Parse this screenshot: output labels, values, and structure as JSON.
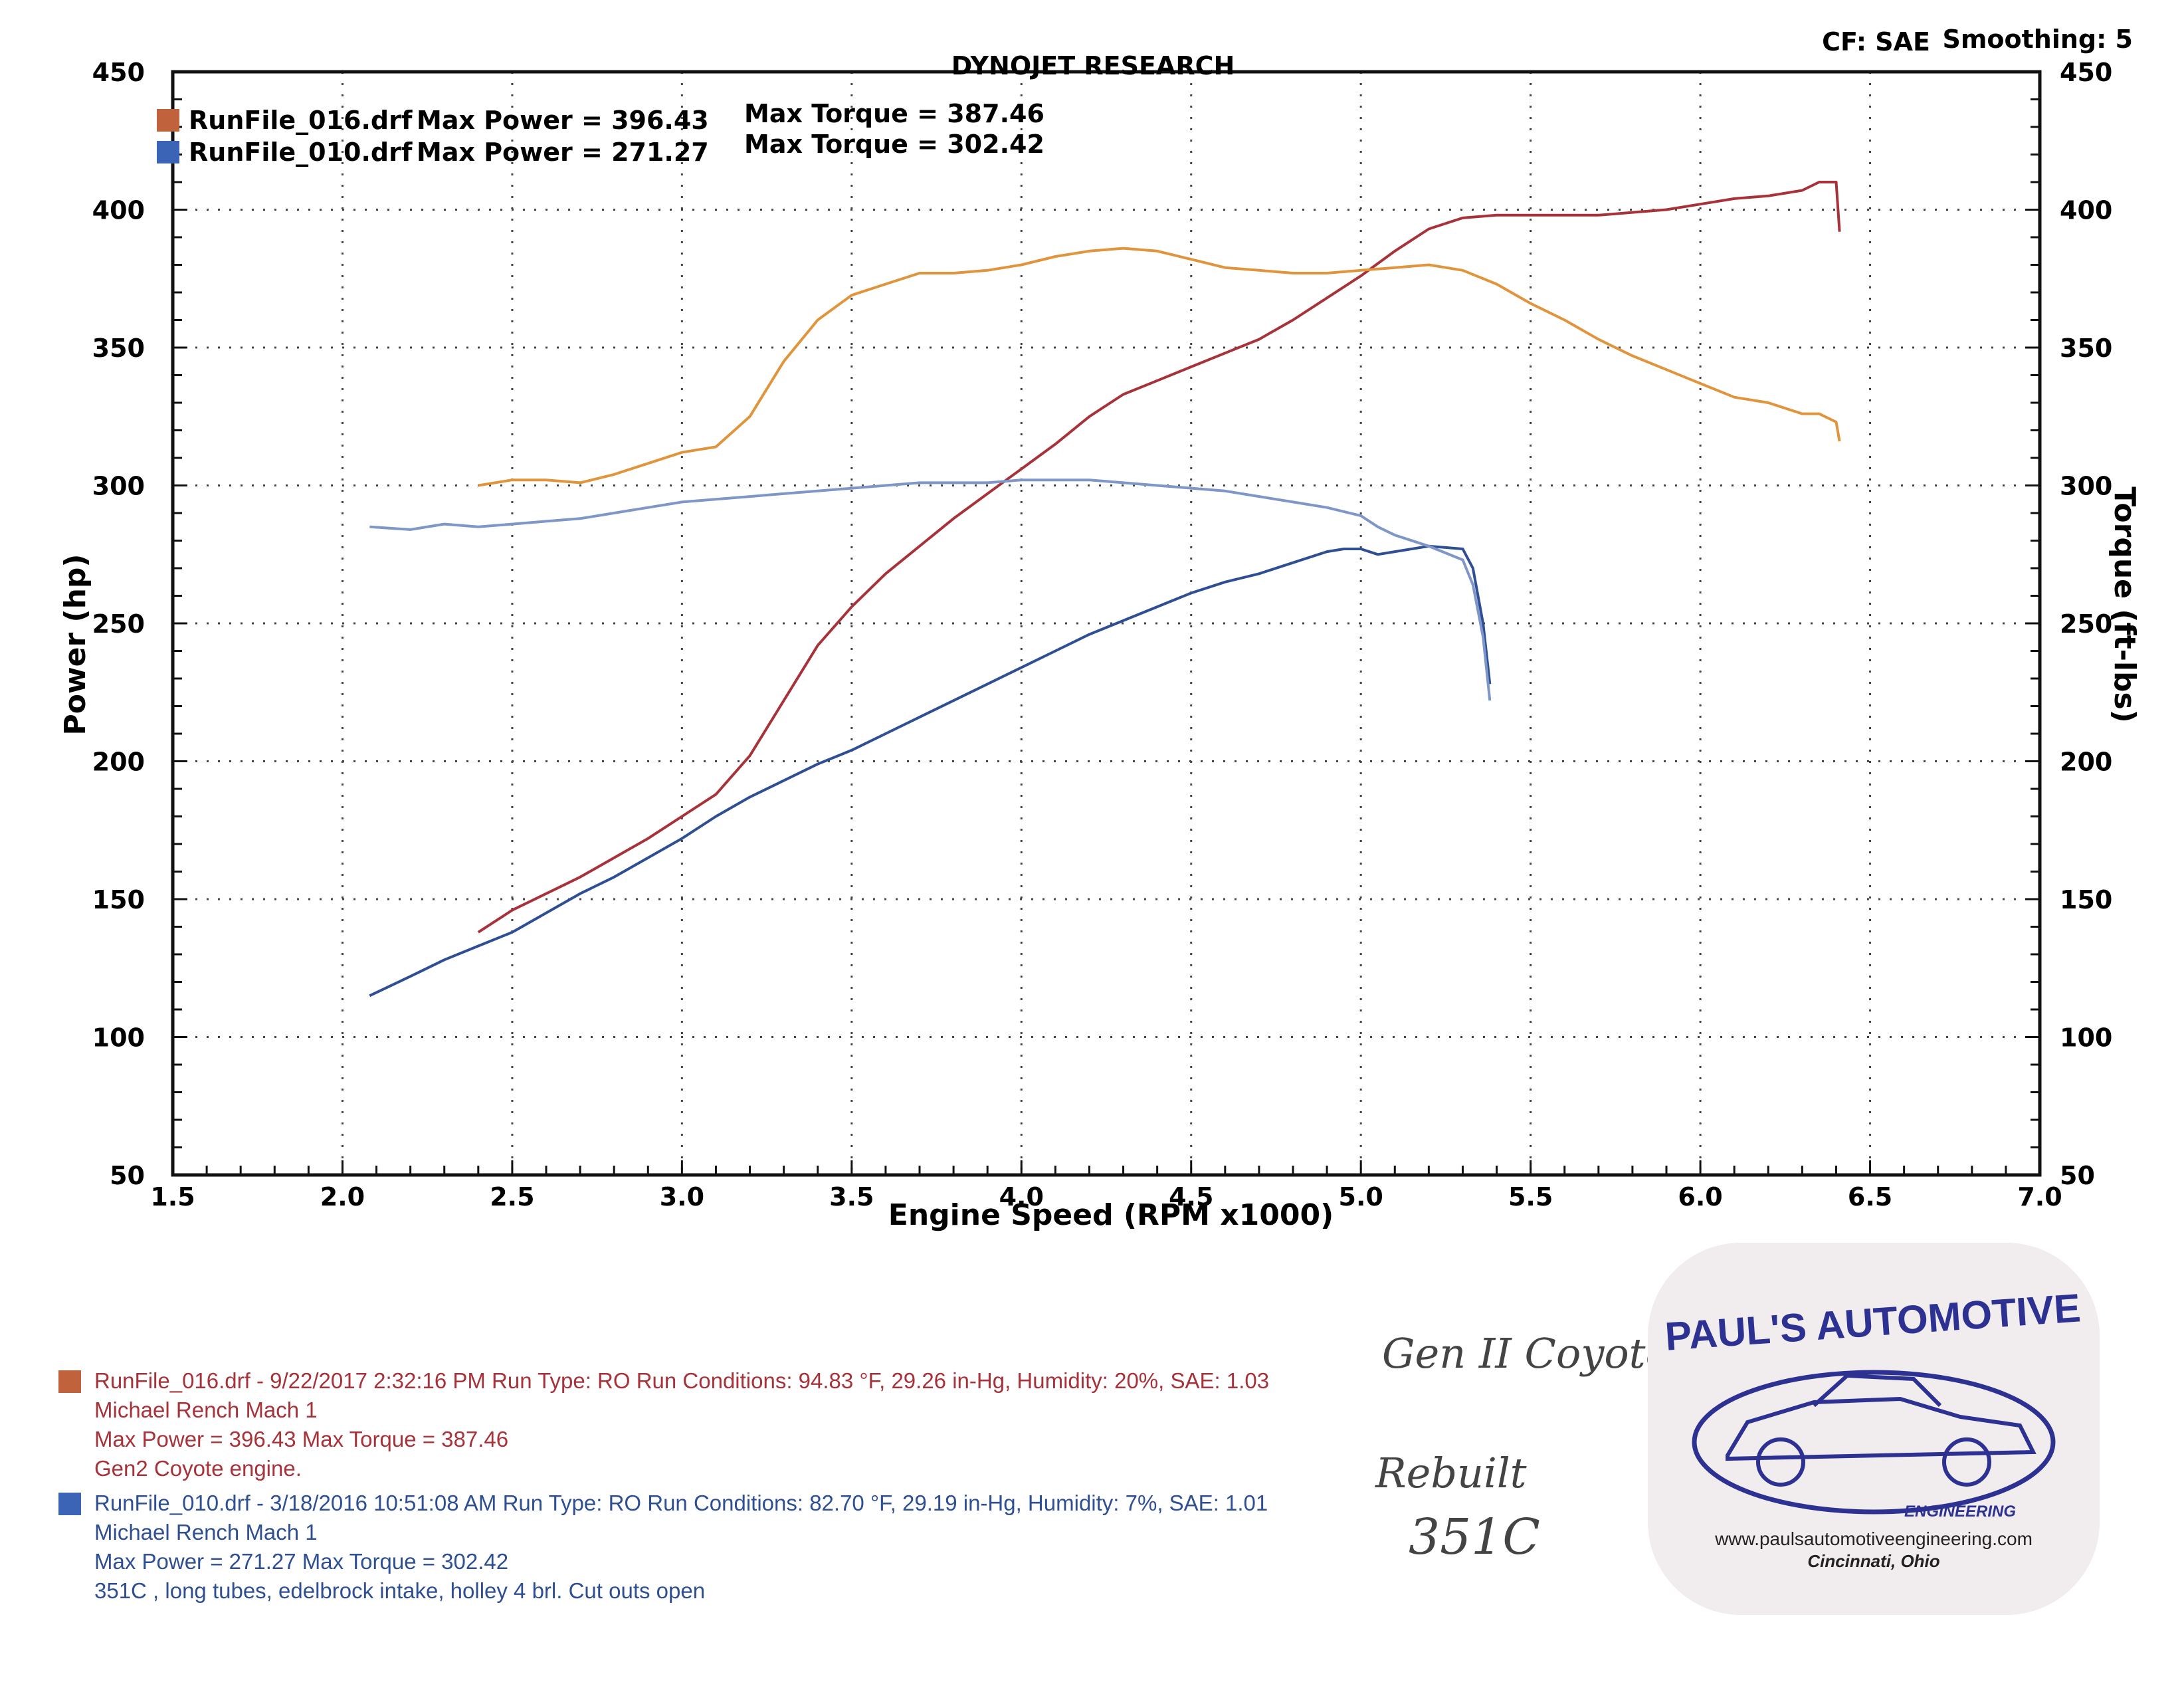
{
  "header": {
    "title": "DYNOJET RESEARCH",
    "cf_label": "CF: SAE",
    "smoothing_label": "Smoothing: 5"
  },
  "legend": [
    {
      "name": "RunFile_016.drf",
      "max_power_text": "Max Power = 396.43",
      "max_torque_text": "Max Torque = 387.46",
      "color": "#c0633c"
    },
    {
      "name": "RunFile_010.drf",
      "max_power_text": "Max Power = 271.27",
      "max_torque_text": "Max Torque = 302.42",
      "color": "#3b63b6"
    }
  ],
  "chart_data": {
    "type": "line",
    "title": "DYNOJET RESEARCH",
    "xlabel": "Engine Speed (RPM x1000)",
    "ylabel": "Power (hp)",
    "y2label": "Torque (ft-lbs)",
    "xlim": [
      1.5,
      7.0
    ],
    "ylim": [
      50,
      450
    ],
    "y2lim": [
      50,
      450
    ],
    "x_ticks": [
      "1.5",
      "2.0",
      "2.5",
      "3.0",
      "3.5",
      "4.0",
      "4.5",
      "5.0",
      "5.5",
      "6.0",
      "6.5",
      "7.0"
    ],
    "y_ticks": [
      "50",
      "100",
      "150",
      "200",
      "250",
      "300",
      "350",
      "400",
      "450"
    ],
    "y2_ticks": [
      "50",
      "100",
      "150",
      "200",
      "250",
      "300",
      "350",
      "400",
      "450"
    ],
    "grid": true,
    "legend_position": "top-left",
    "series": [
      {
        "name": "RunFile_016.drf Power",
        "axis": "left",
        "color": "#a8323a",
        "x": [
          2.4,
          2.5,
          2.6,
          2.7,
          2.8,
          2.9,
          3.0,
          3.1,
          3.2,
          3.3,
          3.4,
          3.5,
          3.6,
          3.7,
          3.8,
          3.9,
          4.0,
          4.1,
          4.2,
          4.3,
          4.4,
          4.5,
          4.6,
          4.7,
          4.8,
          4.9,
          5.0,
          5.1,
          5.2,
          5.3,
          5.4,
          5.5,
          5.6,
          5.7,
          5.8,
          5.9,
          6.0,
          6.1,
          6.2,
          6.3,
          6.35,
          6.4,
          6.41
        ],
        "y": [
          138,
          146,
          152,
          158,
          165,
          172,
          180,
          188,
          202,
          222,
          242,
          256,
          268,
          278,
          288,
          297,
          306,
          315,
          325,
          333,
          338,
          343,
          348,
          353,
          360,
          368,
          376,
          385,
          393,
          397,
          398,
          398,
          398,
          398,
          399,
          400,
          402,
          404,
          405,
          407,
          410,
          410,
          392
        ]
      },
      {
        "name": "RunFile_010.drf Power",
        "axis": "left",
        "color": "#2e4f93",
        "x": [
          2.08,
          2.2,
          2.3,
          2.4,
          2.5,
          2.6,
          2.7,
          2.8,
          2.9,
          3.0,
          3.1,
          3.2,
          3.3,
          3.4,
          3.5,
          3.6,
          3.7,
          3.8,
          3.9,
          4.0,
          4.1,
          4.2,
          4.3,
          4.4,
          4.5,
          4.6,
          4.7,
          4.8,
          4.9,
          4.95,
          5.0,
          5.05,
          5.1,
          5.2,
          5.3,
          5.33,
          5.36,
          5.38
        ],
        "y": [
          115,
          122,
          128,
          133,
          138,
          145,
          152,
          158,
          165,
          172,
          180,
          187,
          193,
          199,
          204,
          210,
          216,
          222,
          228,
          234,
          240,
          246,
          251,
          256,
          261,
          265,
          268,
          272,
          276,
          277,
          277,
          275,
          276,
          278,
          277,
          270,
          250,
          228
        ]
      },
      {
        "name": "RunFile_016.drf Torque",
        "axis": "right",
        "color": "#e0943c",
        "x": [
          2.4,
          2.5,
          2.6,
          2.7,
          2.8,
          2.9,
          3.0,
          3.1,
          3.2,
          3.3,
          3.4,
          3.5,
          3.6,
          3.7,
          3.8,
          3.9,
          4.0,
          4.1,
          4.2,
          4.3,
          4.4,
          4.5,
          4.6,
          4.7,
          4.8,
          4.9,
          5.0,
          5.1,
          5.2,
          5.3,
          5.4,
          5.5,
          5.6,
          5.7,
          5.8,
          5.9,
          6.0,
          6.1,
          6.2,
          6.3,
          6.35,
          6.4,
          6.41
        ],
        "y": [
          300,
          302,
          302,
          301,
          304,
          308,
          312,
          314,
          325,
          345,
          360,
          369,
          373,
          377,
          377,
          378,
          380,
          383,
          385,
          386,
          385,
          382,
          379,
          378,
          377,
          377,
          378,
          379,
          380,
          378,
          373,
          366,
          360,
          353,
          347,
          342,
          337,
          332,
          330,
          326,
          326,
          323,
          316
        ]
      },
      {
        "name": "RunFile_010.drf Torque",
        "axis": "right",
        "color": "#7f96c9",
        "x": [
          2.08,
          2.2,
          2.3,
          2.4,
          2.5,
          2.6,
          2.7,
          2.8,
          2.9,
          3.0,
          3.1,
          3.2,
          3.3,
          3.4,
          3.5,
          3.6,
          3.7,
          3.8,
          3.9,
          4.0,
          4.1,
          4.2,
          4.3,
          4.4,
          4.5,
          4.6,
          4.7,
          4.8,
          4.9,
          5.0,
          5.05,
          5.1,
          5.2,
          5.3,
          5.33,
          5.36,
          5.38
        ],
        "y": [
          285,
          284,
          286,
          285,
          286,
          287,
          288,
          290,
          292,
          294,
          295,
          296,
          297,
          298,
          299,
          300,
          301,
          301,
          301,
          302,
          302,
          302,
          301,
          300,
          299,
          298,
          296,
          294,
          292,
          289,
          285,
          282,
          278,
          273,
          264,
          245,
          222
        ]
      }
    ]
  },
  "run_notes": [
    {
      "line1": "RunFile_016.drf - 9/22/2017 2:32:16 PM  Run Type: RO  Run Conditions: 94.83 °F, 29.26 in-Hg,  Humidity:  20%, SAE: 1.03",
      "line2": "Michael Rench  Mach 1",
      "line3": "Max Power = 396.43  Max Torque = 387.46",
      "line4": "Gen2 Coyote engine.",
      "color": "#a8323a"
    },
    {
      "line1": "RunFile_010.drf - 3/18/2016 10:51:08 AM  Run Type: RO  Run Conditions: 82.70 °F, 29.19 in-Hg,  Humidity:  7%, SAE: 1.01",
      "line2": "Michael Rench  Mach 1",
      "line3": "Max Power = 271.27  Max Torque = 302.42",
      "line4": "351C , long tubes, edelbrock intake, holley 4 brl. Cut outs open",
      "color": "#2e4f93"
    }
  ],
  "handwritten": {
    "gen2": "Gen II Coyote",
    "rebuilt": "Rebuilt",
    "engine": "351C"
  },
  "logo": {
    "brand": "PAUL'S AUTOMOTIVE",
    "sub": "ENGINEERING",
    "url": "www.paulsautomotiveengineering.com",
    "city": "Cincinnati, Ohio",
    "color": "#2d3192"
  }
}
